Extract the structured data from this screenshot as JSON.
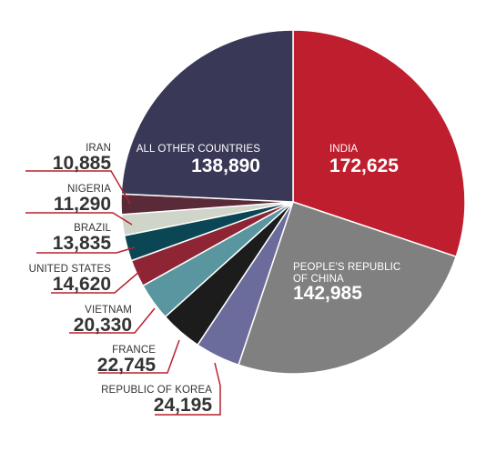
{
  "chart_data": {
    "type": "pie",
    "title": "",
    "start": "12 o'clock, clockwise",
    "slices": [
      {
        "category": "INDIA",
        "value": 172625,
        "label": "172,625",
        "color": "#bf1e2e",
        "label_position": "inside"
      },
      {
        "category": "PEOPLE'S REPUBLIC OF CHINA",
        "label_lines": [
          "PEOPLE'S REPUBLIC",
          "OF CHINA"
        ],
        "value": 142985,
        "label": "142,985",
        "color": "#808080",
        "label_position": "inside"
      },
      {
        "category": "REPUBLIC OF KOREA",
        "value": 24195,
        "label": "24,195",
        "color": "#6b6c9c",
        "label_position": "outside"
      },
      {
        "category": "FRANCE",
        "value": 22745,
        "label": "22,745",
        "color": "#1c1c1c",
        "label_position": "outside"
      },
      {
        "category": "VIETNAM",
        "value": 20330,
        "label": "20,330",
        "color": "#5996a0",
        "label_position": "outside"
      },
      {
        "category": "UNITED STATES",
        "value": 14620,
        "label": "14,620",
        "color": "#8d2535",
        "label_position": "outside"
      },
      {
        "category": "BRAZIL",
        "value": 13835,
        "label": "13,835",
        "color": "#0a4654",
        "label_position": "outside"
      },
      {
        "category": "NIGERIA",
        "value": 11290,
        "label": "11,290",
        "color": "#cfd5c8",
        "label_position": "outside"
      },
      {
        "category": "IRAN",
        "value": 10885,
        "label": "10,885",
        "color": "#5a2a38",
        "label_position": "outside"
      },
      {
        "category": "ALL OTHER COUNTRIES",
        "value": 138890,
        "label": "138,890",
        "color": "#393856",
        "label_position": "inside"
      }
    ]
  },
  "colors": {
    "leader_line": "#b8202f",
    "outside_text": "#333333",
    "inside_text": "#ffffff",
    "slice_border": "#ffffff"
  }
}
